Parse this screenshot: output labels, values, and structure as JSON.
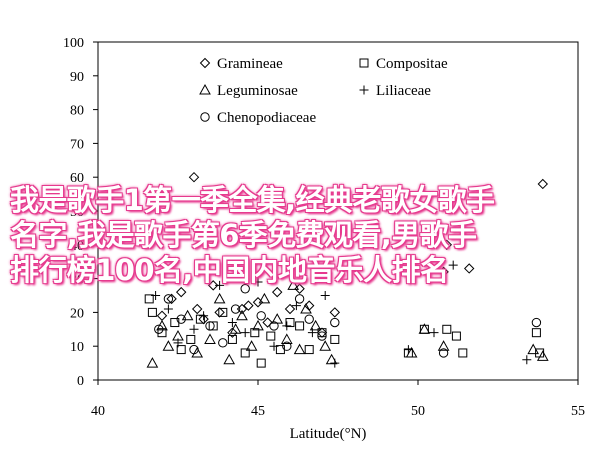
{
  "chart_data": {
    "type": "scatter",
    "xlabel": "Latitude(°N)",
    "ylabel": "",
    "xlim": [
      40,
      55
    ],
    "ylim": [
      0,
      100
    ],
    "x_ticks": [
      40,
      45,
      50,
      55
    ],
    "y_ticks": [
      0,
      10,
      20,
      30,
      40,
      50,
      60,
      70,
      80,
      90,
      100
    ],
    "grid": false,
    "legend_position": "top-right",
    "series": [
      {
        "name": "Gramineae",
        "marker": "diamond",
        "points": [
          [
            42.0,
            19
          ],
          [
            42.3,
            24
          ],
          [
            42.6,
            26
          ],
          [
            43.0,
            60
          ],
          [
            43.1,
            21
          ],
          [
            43.3,
            18
          ],
          [
            43.6,
            28
          ],
          [
            43.8,
            20
          ],
          [
            44.2,
            14
          ],
          [
            44.5,
            21
          ],
          [
            44.7,
            22
          ],
          [
            45.0,
            23
          ],
          [
            45.3,
            17
          ],
          [
            45.6,
            26
          ],
          [
            46.0,
            21
          ],
          [
            46.3,
            27
          ],
          [
            46.6,
            22
          ],
          [
            47.0,
            14
          ],
          [
            47.4,
            20
          ],
          [
            50.8,
            32
          ],
          [
            50.9,
            40
          ],
          [
            51.6,
            33
          ],
          [
            53.9,
            58
          ]
        ]
      },
      {
        "name": "Compositae",
        "marker": "square",
        "points": [
          [
            41.6,
            24
          ],
          [
            41.7,
            20
          ],
          [
            42.0,
            14
          ],
          [
            42.4,
            17
          ],
          [
            42.6,
            9
          ],
          [
            42.9,
            12
          ],
          [
            43.2,
            18
          ],
          [
            43.6,
            16
          ],
          [
            43.9,
            20
          ],
          [
            44.2,
            12
          ],
          [
            44.6,
            8
          ],
          [
            44.9,
            14
          ],
          [
            45.1,
            5
          ],
          [
            45.4,
            13
          ],
          [
            45.7,
            9
          ],
          [
            46.0,
            17
          ],
          [
            46.3,
            16
          ],
          [
            46.6,
            9
          ],
          [
            47.0,
            14
          ],
          [
            47.4,
            12
          ],
          [
            49.7,
            8
          ],
          [
            50.2,
            15
          ],
          [
            50.9,
            15
          ],
          [
            51.2,
            13
          ],
          [
            51.4,
            8
          ],
          [
            53.7,
            14
          ],
          [
            53.8,
            8
          ]
        ]
      },
      {
        "name": "Leguminosae",
        "marker": "triangle",
        "points": [
          [
            41.7,
            5
          ],
          [
            42.0,
            16
          ],
          [
            42.2,
            10
          ],
          [
            42.5,
            13
          ],
          [
            42.8,
            19
          ],
          [
            43.1,
            8
          ],
          [
            43.5,
            12
          ],
          [
            43.8,
            24
          ],
          [
            44.1,
            6
          ],
          [
            44.3,
            15
          ],
          [
            44.5,
            19
          ],
          [
            44.8,
            10
          ],
          [
            45.0,
            16
          ],
          [
            45.2,
            24
          ],
          [
            45.6,
            18
          ],
          [
            45.9,
            12
          ],
          [
            46.1,
            28
          ],
          [
            46.3,
            9
          ],
          [
            46.5,
            21
          ],
          [
            46.8,
            16
          ],
          [
            47.1,
            10
          ],
          [
            47.3,
            6
          ],
          [
            49.8,
            8
          ],
          [
            50.2,
            15
          ],
          [
            50.8,
            10
          ],
          [
            53.6,
            9
          ],
          [
            53.9,
            7
          ]
        ]
      },
      {
        "name": "Liliaceae",
        "marker": "plus",
        "points": [
          [
            41.8,
            25
          ],
          [
            42.2,
            21
          ],
          [
            42.5,
            11
          ],
          [
            43.0,
            15
          ],
          [
            43.3,
            19
          ],
          [
            43.8,
            28
          ],
          [
            44.2,
            17
          ],
          [
            44.6,
            14
          ],
          [
            45.0,
            29
          ],
          [
            45.5,
            10
          ],
          [
            45.9,
            16
          ],
          [
            46.2,
            22
          ],
          [
            46.7,
            14
          ],
          [
            47.1,
            25
          ],
          [
            47.4,
            5
          ],
          [
            49.7,
            9
          ],
          [
            50.5,
            14
          ],
          [
            51.1,
            34
          ],
          [
            53.4,
            6
          ]
        ]
      },
      {
        "name": "Chenopodiaceae",
        "marker": "circle",
        "points": [
          [
            41.9,
            15
          ],
          [
            42.2,
            24
          ],
          [
            42.6,
            18
          ],
          [
            43.0,
            9
          ],
          [
            43.5,
            16
          ],
          [
            43.9,
            11
          ],
          [
            44.3,
            21
          ],
          [
            44.6,
            27
          ],
          [
            45.1,
            19
          ],
          [
            45.5,
            16
          ],
          [
            45.9,
            10
          ],
          [
            46.3,
            24
          ],
          [
            46.6,
            18
          ],
          [
            47.0,
            13
          ],
          [
            47.4,
            17
          ],
          [
            50.8,
            8
          ],
          [
            53.7,
            17
          ]
        ]
      }
    ]
  },
  "overlay": {
    "lines": [
      "我是歌手1第一季全集,经典老歌女歌手",
      "名字,我是歌手第6季免费观看,男歌手",
      "排行榜100名,中国内地音乐人排名"
    ],
    "color": "#ffffff",
    "outline_color": "#e63b8f"
  }
}
